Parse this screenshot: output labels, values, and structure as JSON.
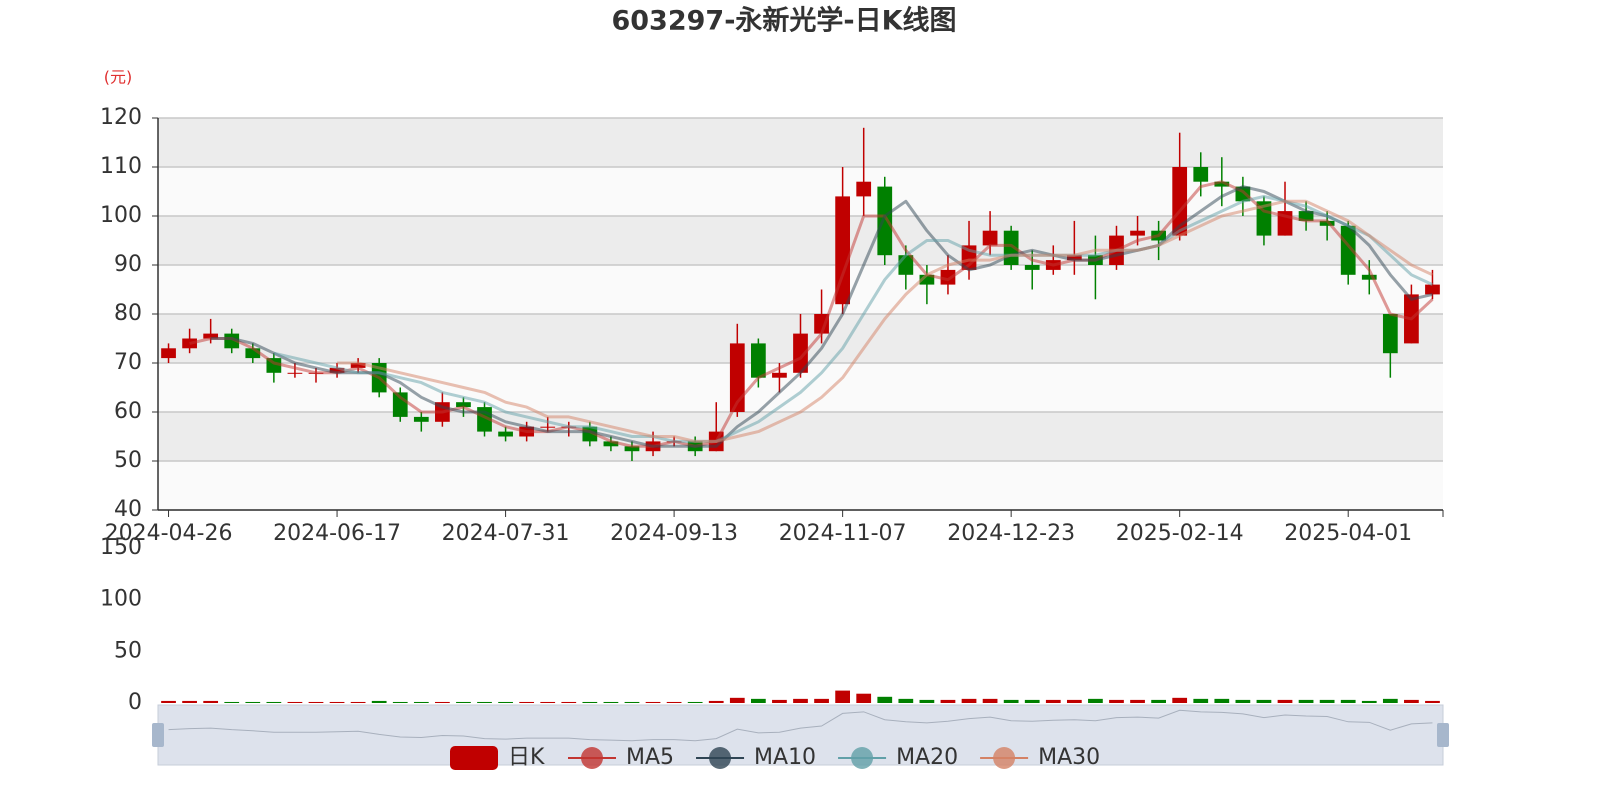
{
  "chart_data": {
    "type": "candlestick",
    "title": "603297-永新光学-日K线图",
    "y_axis_label": "(元)",
    "candle_name": "日K",
    "up_color": "#c00000",
    "down_color": "#008000",
    "grid": true,
    "ylim": [
      40,
      120
    ],
    "yticks": [
      40,
      50,
      60,
      70,
      80,
      90,
      100,
      110,
      120
    ],
    "categories": [
      "2024-04-26",
      null,
      null,
      null,
      null,
      null,
      null,
      null,
      "2024-06-17",
      null,
      null,
      null,
      null,
      null,
      null,
      null,
      "2024-07-31",
      null,
      null,
      null,
      null,
      null,
      null,
      null,
      "2024-09-13",
      null,
      null,
      null,
      null,
      null,
      null,
      null,
      "2024-11-07",
      null,
      null,
      null,
      null,
      null,
      null,
      null,
      "2024-12-23",
      null,
      null,
      null,
      null,
      null,
      null,
      null,
      "2025-02-14",
      null,
      null,
      null,
      null,
      null,
      null,
      null,
      "2025-04-01",
      null,
      null,
      null,
      null
    ],
    "candles": [
      [
        71,
        73,
        70,
        74
      ],
      [
        73,
        75,
        72,
        77
      ],
      [
        75,
        76,
        74,
        79
      ],
      [
        76,
        73,
        72,
        77
      ],
      [
        73,
        71,
        70,
        74
      ],
      [
        71,
        68,
        66,
        72
      ],
      [
        68,
        68,
        67,
        70
      ],
      [
        68,
        68,
        66,
        69
      ],
      [
        68,
        69,
        67,
        70
      ],
      [
        69,
        70,
        68,
        71
      ],
      [
        70,
        64,
        63,
        71
      ],
      [
        64,
        59,
        58,
        65
      ],
      [
        59,
        58,
        56,
        60
      ],
      [
        58,
        62,
        57,
        64
      ],
      [
        62,
        61,
        59,
        63
      ],
      [
        61,
        56,
        55,
        62
      ],
      [
        56,
        55,
        54,
        57
      ],
      [
        55,
        57,
        54,
        58
      ],
      [
        57,
        57,
        56,
        59
      ],
      [
        57,
        57,
        55,
        58
      ],
      [
        57,
        54,
        53,
        58
      ],
      [
        54,
        53,
        52,
        55
      ],
      [
        53,
        52,
        50,
        54
      ],
      [
        52,
        54,
        51,
        56
      ],
      [
        54,
        54,
        53,
        55
      ],
      [
        54,
        52,
        51,
        55
      ],
      [
        52,
        56,
        52,
        62
      ],
      [
        60,
        74,
        59,
        78
      ],
      [
        74,
        67,
        65,
        75
      ],
      [
        67,
        68,
        64,
        70
      ],
      [
        68,
        76,
        67,
        80
      ],
      [
        76,
        80,
        74,
        85
      ],
      [
        82,
        104,
        80,
        110
      ],
      [
        104,
        107,
        100,
        118
      ],
      [
        106,
        92,
        90,
        108
      ],
      [
        92,
        88,
        85,
        94
      ],
      [
        88,
        86,
        82,
        90
      ],
      [
        86,
        89,
        84,
        92
      ],
      [
        89,
        94,
        87,
        99
      ],
      [
        94,
        97,
        92,
        101
      ],
      [
        97,
        90,
        89,
        98
      ],
      [
        90,
        89,
        85,
        93
      ],
      [
        89,
        91,
        88,
        94
      ],
      [
        91,
        92,
        88,
        99
      ],
      [
        92,
        90,
        83,
        96
      ],
      [
        90,
        96,
        89,
        98
      ],
      [
        96,
        97,
        94,
        100
      ],
      [
        97,
        95,
        91,
        99
      ],
      [
        96,
        110,
        95,
        117
      ],
      [
        110,
        107,
        104,
        113
      ],
      [
        107,
        106,
        102,
        112
      ],
      [
        106,
        103,
        100,
        108
      ],
      [
        103,
        96,
        94,
        104
      ],
      [
        96,
        101,
        96,
        107
      ],
      [
        101,
        99,
        97,
        103
      ],
      [
        99,
        98,
        95,
        101
      ],
      [
        98,
        88,
        86,
        99
      ],
      [
        88,
        87,
        84,
        91
      ],
      [
        80,
        72,
        67,
        80
      ],
      [
        74,
        84,
        74,
        86
      ],
      [
        84,
        86,
        83,
        89
      ]
    ],
    "series": [
      {
        "name": "MA5",
        "color": "#c23531",
        "values": [
          null,
          74,
          75,
          75,
          73,
          70,
          69,
          68,
          68,
          69,
          67,
          63,
          60,
          60,
          61,
          59,
          57,
          56,
          56,
          57,
          56,
          54,
          53,
          53,
          54,
          53,
          54,
          62,
          67,
          69,
          71,
          76,
          88,
          100,
          100,
          93,
          88,
          87,
          90,
          94,
          94,
          91,
          90,
          91,
          91,
          93,
          95,
          96,
          101,
          106,
          107,
          105,
          101,
          100,
          99,
          99,
          94,
          89,
          80,
          79,
          83
        ]
      },
      {
        "name": "MA10",
        "color": "#2f4554",
        "values": [
          null,
          null,
          75,
          75,
          74,
          72,
          70,
          69,
          68,
          68,
          68,
          66,
          63,
          61,
          60,
          60,
          58,
          57,
          56,
          56,
          56,
          55,
          54,
          53,
          53,
          53,
          53,
          57,
          60,
          64,
          68,
          73,
          80,
          90,
          100,
          103,
          97,
          92,
          89,
          90,
          92,
          93,
          92,
          91,
          91,
          92,
          93,
          94,
          98,
          101,
          104,
          106,
          105,
          103,
          101,
          100,
          98,
          94,
          88,
          83,
          84
        ]
      },
      {
        "name": "MA20",
        "color": "#61a0a8",
        "values": [
          null,
          null,
          null,
          null,
          null,
          72,
          71,
          70,
          69,
          68,
          68,
          67,
          66,
          64,
          63,
          62,
          60,
          59,
          58,
          57,
          57,
          56,
          55,
          55,
          54,
          54,
          54,
          56,
          58,
          61,
          64,
          68,
          73,
          80,
          87,
          92,
          95,
          95,
          93,
          92,
          92,
          92,
          92,
          92,
          92,
          93,
          93,
          94,
          97,
          99,
          101,
          103,
          104,
          103,
          102,
          100,
          98,
          96,
          92,
          88,
          86
        ]
      },
      {
        "name": "MA30",
        "color": "#d48265",
        "values": [
          null,
          null,
          null,
          null,
          null,
          null,
          null,
          null,
          70,
          70,
          69,
          68,
          67,
          66,
          65,
          64,
          62,
          61,
          59,
          59,
          58,
          57,
          56,
          55,
          55,
          54,
          54,
          55,
          56,
          58,
          60,
          63,
          67,
          73,
          79,
          84,
          88,
          90,
          91,
          91,
          92,
          92,
          92,
          92,
          93,
          93,
          93,
          94,
          96,
          98,
          100,
          101,
          102,
          103,
          103,
          101,
          99,
          96,
          93,
          90,
          88
        ]
      }
    ],
    "volume": {
      "values": [
        2,
        2,
        2,
        1,
        1,
        1,
        1,
        1,
        1,
        1,
        2,
        1,
        1,
        1,
        1,
        1,
        1,
        1,
        1,
        1,
        1,
        1,
        1,
        1,
        1,
        1,
        2,
        5,
        4,
        3,
        4,
        4,
        12,
        9,
        6,
        4,
        3,
        3,
        4,
        4,
        3,
        3,
        3,
        3,
        4,
        3,
        3,
        3,
        5,
        4,
        4,
        3,
        3,
        3,
        3,
        3,
        3,
        2,
        4,
        3,
        2
      ],
      "ylim": [
        0,
        150
      ],
      "yticks": [
        0,
        50,
        100,
        150
      ]
    }
  }
}
